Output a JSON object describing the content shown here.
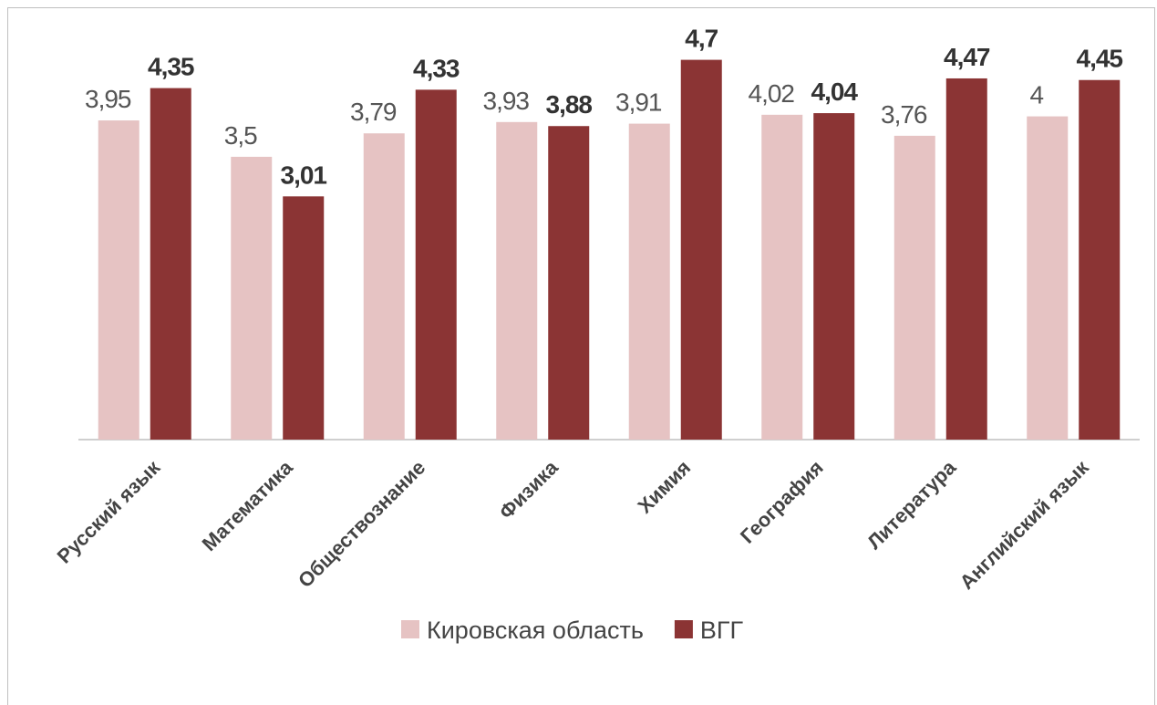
{
  "chart_data": {
    "type": "bar",
    "categories": [
      "Русский язык",
      "Математика",
      "Обществознание",
      "Физика",
      "Химия",
      "География",
      "Литература",
      "Английский язык"
    ],
    "series": [
      {
        "name": "Кировская область",
        "color": "#e6c3c3",
        "values": [
          3.95,
          3.5,
          3.79,
          3.93,
          3.91,
          4.02,
          3.76,
          4
        ],
        "value_labels": [
          "3,95",
          "3,5",
          "3,79",
          "3,93",
          "3,91",
          "4,02",
          "3,76",
          "4"
        ]
      },
      {
        "name": "ВГГ",
        "color": "#8b3434",
        "values": [
          4.35,
          3.01,
          4.33,
          3.88,
          4.7,
          4.04,
          4.47,
          4.45
        ],
        "value_labels": [
          "4,35",
          "3,01",
          "4,33",
          "3,88",
          "4,7",
          "4,04",
          "4,47",
          "4,45"
        ]
      }
    ],
    "ylim": [
      0,
      5.35
    ]
  }
}
